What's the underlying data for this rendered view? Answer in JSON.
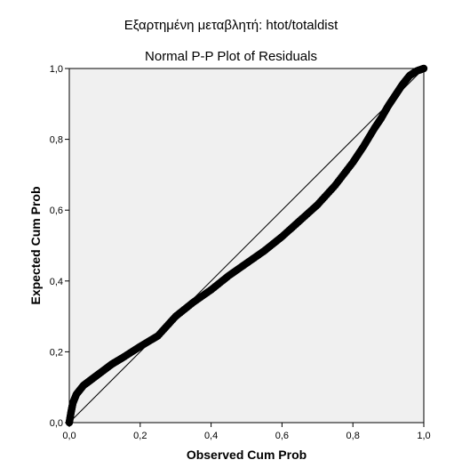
{
  "chart_data": {
    "type": "scatter",
    "title": "Εξαρτημένη μεταβλητή: htot/totaldist",
    "subtitle": "Normal P-P Plot of Residuals",
    "xlabel": "Observed Cum Prob",
    "ylabel": "Expected Cum Prob",
    "xlim": [
      0,
      1
    ],
    "ylim": [
      0,
      1
    ],
    "x_ticks": [
      "0,0",
      "0,2",
      "0,4",
      "0,6",
      "0,8",
      "1,0"
    ],
    "y_ticks": [
      "0,0",
      "0,2",
      "0,4",
      "0,6",
      "0,8",
      "1,0"
    ],
    "grid": false,
    "reference_line": [
      [
        0,
        0
      ],
      [
        1,
        1
      ]
    ],
    "series": [
      {
        "x": [
          0.0,
          0.005,
          0.01,
          0.02,
          0.04,
          0.06,
          0.08,
          0.1,
          0.12,
          0.15,
          0.2,
          0.25,
          0.3,
          0.35,
          0.4,
          0.45,
          0.5,
          0.55,
          0.6,
          0.65,
          0.7,
          0.75,
          0.8,
          0.83,
          0.86,
          0.88,
          0.9,
          0.92,
          0.94,
          0.96,
          0.98,
          1.0
        ],
        "y": [
          0.0,
          0.03,
          0.055,
          0.08,
          0.105,
          0.12,
          0.135,
          0.15,
          0.165,
          0.183,
          0.215,
          0.245,
          0.3,
          0.34,
          0.375,
          0.415,
          0.45,
          0.485,
          0.525,
          0.57,
          0.615,
          0.67,
          0.735,
          0.78,
          0.83,
          0.86,
          0.895,
          0.925,
          0.955,
          0.98,
          0.993,
          1.0
        ]
      }
    ],
    "colors": {
      "plot_bg": "#f0f0f0",
      "points": "#000000",
      "line": "#000000"
    }
  }
}
